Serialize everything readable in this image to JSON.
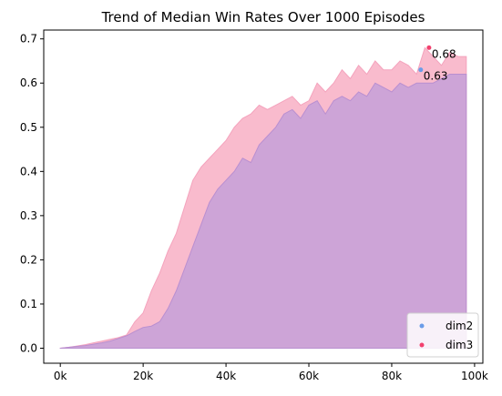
{
  "chart_data": {
    "type": "area",
    "title": "Trend of Median Win Rates Over 1000 Episodes",
    "xlabel": "",
    "ylabel": "",
    "xlim": [
      -4000,
      102000
    ],
    "ylim": [
      -0.034,
      0.72
    ],
    "x_ticks": [
      0,
      20000,
      40000,
      60000,
      80000,
      100000
    ],
    "x_tick_labels": [
      "0k",
      "20k",
      "40k",
      "60k",
      "80k",
      "100k"
    ],
    "y_ticks": [
      0.0,
      0.1,
      0.2,
      0.3,
      0.4,
      0.5,
      0.6,
      0.7
    ],
    "y_tick_labels": [
      "0.0",
      "0.1",
      "0.2",
      "0.3",
      "0.4",
      "0.5",
      "0.6",
      "0.7"
    ],
    "grid": false,
    "legend_position": "lower-right",
    "x": [
      0,
      2000,
      4000,
      6000,
      8000,
      10000,
      12000,
      14000,
      16000,
      18000,
      20000,
      22000,
      24000,
      26000,
      28000,
      30000,
      32000,
      34000,
      36000,
      38000,
      40000,
      42000,
      44000,
      46000,
      48000,
      50000,
      52000,
      54000,
      56000,
      58000,
      60000,
      62000,
      64000,
      66000,
      68000,
      70000,
      72000,
      74000,
      76000,
      78000,
      80000,
      82000,
      84000,
      86000,
      88000,
      90000,
      92000,
      94000,
      96000,
      98000
    ],
    "series": [
      {
        "name": "dim2",
        "color": "#c6a0d8",
        "values": [
          0.0,
          0.002,
          0.004,
          0.006,
          0.009,
          0.012,
          0.016,
          0.022,
          0.028,
          0.038,
          0.047,
          0.05,
          0.06,
          0.09,
          0.13,
          0.18,
          0.23,
          0.28,
          0.33,
          0.36,
          0.38,
          0.4,
          0.43,
          0.42,
          0.46,
          0.48,
          0.5,
          0.53,
          0.54,
          0.52,
          0.55,
          0.56,
          0.53,
          0.56,
          0.57,
          0.56,
          0.58,
          0.57,
          0.6,
          0.59,
          0.58,
          0.6,
          0.59,
          0.6,
          0.6,
          0.6,
          0.61,
          0.62,
          0.62,
          0.62
        ]
      },
      {
        "name": "dim3",
        "color": "#f8b4c8",
        "values": [
          0.0,
          0.002,
          0.005,
          0.008,
          0.012,
          0.016,
          0.02,
          0.024,
          0.03,
          0.06,
          0.08,
          0.13,
          0.17,
          0.22,
          0.26,
          0.32,
          0.38,
          0.41,
          0.43,
          0.45,
          0.47,
          0.5,
          0.52,
          0.53,
          0.55,
          0.54,
          0.55,
          0.56,
          0.57,
          0.55,
          0.56,
          0.6,
          0.58,
          0.6,
          0.63,
          0.61,
          0.64,
          0.62,
          0.65,
          0.63,
          0.63,
          0.65,
          0.64,
          0.62,
          0.68,
          0.66,
          0.64,
          0.67,
          0.66,
          0.66
        ]
      }
    ],
    "markers": [
      {
        "series": "dim2",
        "x": 87000,
        "y": 0.63,
        "label": "0.63",
        "color": "#6b9ce8"
      },
      {
        "series": "dim3",
        "x": 89000,
        "y": 0.68,
        "label": "0.68",
        "color": "#f2406e"
      }
    ],
    "legend": [
      {
        "label": "dim2",
        "color": "#6b9ce8"
      },
      {
        "label": "dim3",
        "color": "#f2406e"
      }
    ]
  }
}
